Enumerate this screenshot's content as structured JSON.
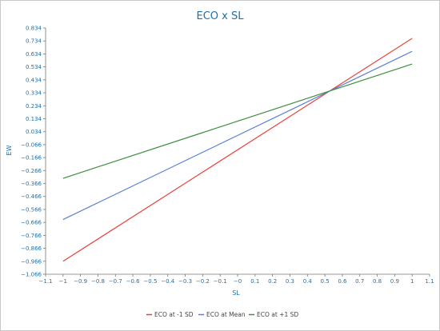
{
  "chart_data": {
    "type": "line",
    "title": "ECO x SL",
    "xlabel": "SL",
    "ylabel": "EW",
    "xlim": [
      -1.1,
      1.1
    ],
    "ylim": [
      -1.066,
      0.834
    ],
    "x_ticks": [
      -1.1,
      -1,
      -0.9,
      -0.8,
      -0.7,
      -0.6,
      -0.5,
      -0.4,
      -0.3,
      -0.2,
      -0.1,
      0,
      0.1,
      0.2,
      0.3,
      0.4,
      0.5,
      0.6,
      0.7,
      0.8,
      0.9,
      1,
      1.1
    ],
    "x_tick_labels": [
      "−1.1",
      "−1",
      "−0.9",
      "−0.8",
      "−0.7",
      "−0.6",
      "−0.5",
      "−0.4",
      "−0.3",
      "−0.2",
      "−0.1",
      "−0",
      "0.1",
      "0.2",
      "0.3",
      "0.4",
      "0.5",
      "0.6",
      "0.7",
      "0.8",
      "0.9",
      "1",
      "1.1"
    ],
    "y_ticks": [
      0.834,
      0.734,
      0.634,
      0.534,
      0.434,
      0.334,
      0.234,
      0.134,
      0.034,
      -0.066,
      -0.166,
      -0.266,
      -0.366,
      -0.466,
      -0.566,
      -0.666,
      -0.766,
      -0.866,
      -0.966,
      -1.066
    ],
    "y_tick_labels": [
      "0.834",
      "0.734",
      "0.634",
      "0.534",
      "0.434",
      "0.334",
      "0.234",
      "0.134",
      "0.034",
      "−0.066",
      "−0.166",
      "−0.266",
      "−0.366",
      "−0.466",
      "−0.566",
      "−0.666",
      "−0.766",
      "−0.866",
      "−0.966",
      "−1.066"
    ],
    "grid": false,
    "legend_position": "bottom-center",
    "series": [
      {
        "name": "ECO at -1 SD",
        "color": "#e8413c",
        "x": [
          -1,
          1
        ],
        "y": [
          -0.966,
          0.754
        ]
      },
      {
        "name": "ECO at Mean",
        "color": "#5a7fd6",
        "x": [
          -1,
          1
        ],
        "y": [
          -0.644,
          0.654
        ]
      },
      {
        "name": "ECO at +1 SD",
        "color": "#3f8f3f",
        "x": [
          -1,
          1
        ],
        "y": [
          -0.326,
          0.556
        ]
      }
    ]
  }
}
